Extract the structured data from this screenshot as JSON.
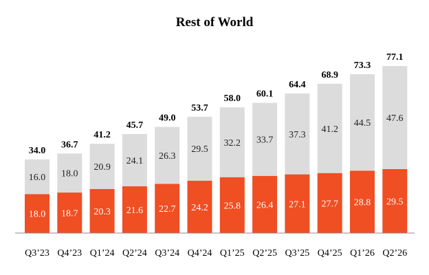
{
  "chart_data": {
    "type": "bar",
    "stacked": true,
    "title": "Rest of World",
    "xlabel": "",
    "ylabel": "",
    "grid": false,
    "legend": "none",
    "categories": [
      "Q3’23",
      "Q4’23",
      "Q1’24",
      "Q2’24",
      "Q3’24",
      "Q4’24",
      "Q1’25",
      "Q2’25",
      "Q3’25",
      "Q4’25",
      "Q1’26",
      "Q2’26"
    ],
    "series": [
      {
        "color": "#F04E23",
        "values": [
          18.0,
          18.7,
          20.3,
          21.6,
          22.7,
          24.2,
          25.8,
          26.4,
          27.1,
          27.7,
          28.8,
          29.5
        ],
        "labels": [
          "18.0",
          "18.7",
          "20.3",
          "21.6",
          "22.7",
          "24.2",
          "25.8",
          "26.4",
          "27.1",
          "27.7",
          "28.8",
          "29.5"
        ]
      },
      {
        "color": "#DCDCDC",
        "values": [
          16.0,
          18.0,
          20.9,
          24.1,
          26.3,
          29.5,
          32.2,
          33.7,
          37.3,
          41.2,
          44.5,
          47.6
        ],
        "labels": [
          "16.0",
          "18.0",
          "20.9",
          "24.1",
          "26.3",
          "29.5",
          "32.2",
          "33.7",
          "37.3",
          "41.2",
          "44.5",
          "47.6"
        ]
      }
    ],
    "totals": [
      34.0,
      36.7,
      41.2,
      45.7,
      49.0,
      53.7,
      58.0,
      60.1,
      64.4,
      68.9,
      73.3,
      77.1
    ],
    "total_labels": [
      "34.0",
      "36.7",
      "41.2",
      "45.7",
      "49.0",
      "53.7",
      "58.0",
      "60.1",
      "64.4",
      "68.9",
      "73.3",
      "77.1"
    ],
    "ylim": [
      0,
      77.1
    ]
  }
}
